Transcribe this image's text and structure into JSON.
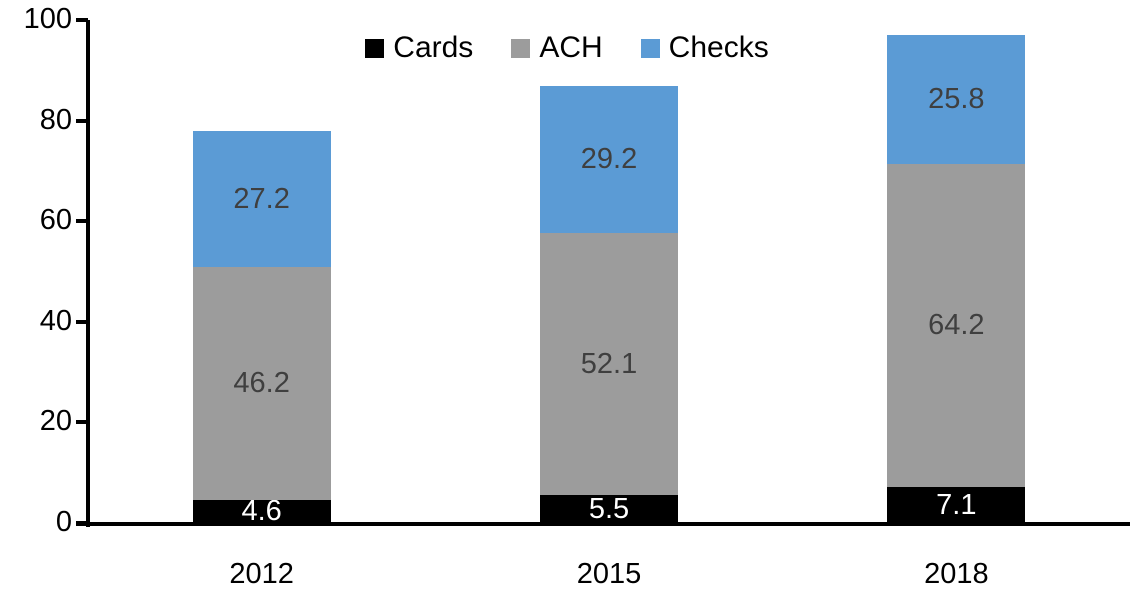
{
  "chart_data": {
    "type": "bar",
    "stacked": true,
    "title": "",
    "xlabel": "",
    "ylabel": "",
    "categories": [
      "2012",
      "2015",
      "2018"
    ],
    "series": [
      {
        "name": "Cards",
        "color": "#000000",
        "label_color": "#FFFFFF",
        "values": [
          4.6,
          5.5,
          7.1
        ]
      },
      {
        "name": "ACH",
        "color": "#9C9C9C",
        "label_color": "#3F3F3F",
        "values": [
          46.2,
          52.1,
          64.2
        ]
      },
      {
        "name": "Checks",
        "color": "#5B9BD5",
        "label_color": "#3F3F3F",
        "values": [
          27.2,
          29.2,
          25.8
        ]
      }
    ],
    "totals": [
      78.0,
      86.8,
      97.1
    ],
    "ylim": [
      0,
      100
    ],
    "yticks": [
      "0",
      "20",
      "40",
      "60",
      "80",
      "100"
    ],
    "grid": false,
    "legend_position": "top-center",
    "legend_entries": [
      "Cards",
      "ACH",
      "Checks"
    ],
    "axis_color": "#000000",
    "background_color": "#FFFFFF"
  }
}
